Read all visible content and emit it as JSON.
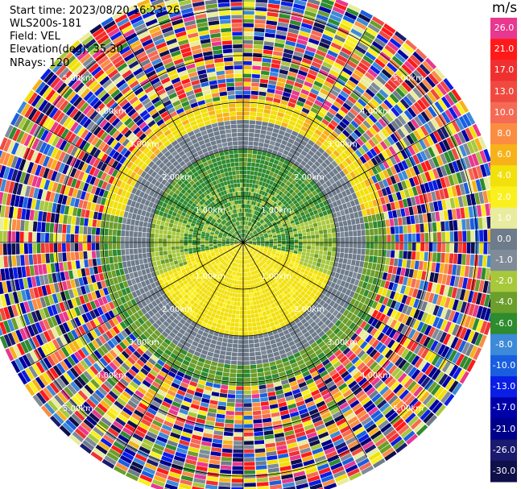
{
  "info": {
    "start_time": "Start time: 2023/08/20 16:23:26",
    "instrument": "WLS200s-181",
    "field": "Field: VEL",
    "elevation": "Elevation(deg): 35.30",
    "nrays": "NRays: 120"
  },
  "colorbar": {
    "unit": "m/s",
    "levels": [
      {
        "label": "26.0",
        "color": "#e8388f"
      },
      {
        "label": "21.0",
        "color": "#ff1a1a"
      },
      {
        "label": "17.0",
        "color": "#f03030"
      },
      {
        "label": "13.0",
        "color": "#f04a40"
      },
      {
        "label": "10.0",
        "color": "#f56a55"
      },
      {
        "label": "8.0",
        "color": "#fb8d42"
      },
      {
        "label": "6.0",
        "color": "#f7b21a"
      },
      {
        "label": "4.0",
        "color": "#f2e00a"
      },
      {
        "label": "2.0",
        "color": "#faf01e"
      },
      {
        "label": "1.0",
        "color": "#e8ec9e"
      },
      {
        "label": "0.0",
        "color": "#6e7b8a"
      },
      {
        "label": "-1.0",
        "color": "#7f8c97"
      },
      {
        "label": "-2.0",
        "color": "#a8c83c"
      },
      {
        "label": "-4.0",
        "color": "#6b9e2a"
      },
      {
        "label": "-6.0",
        "color": "#2e8b2e"
      },
      {
        "label": "-8.0",
        "color": "#3c8ad8"
      },
      {
        "label": "-10.0",
        "color": "#1a5ee0"
      },
      {
        "label": "-13.0",
        "color": "#0a1ee6"
      },
      {
        "label": "-17.0",
        "color": "#0000a8"
      },
      {
        "label": "-21.0",
        "color": "#00008a"
      },
      {
        "label": "-26.0",
        "color": "#1a1a6e"
      },
      {
        "label": "-30.0",
        "color": "#0f0f4a"
      }
    ]
  },
  "chart_data": {
    "type": "heatmap",
    "projection": "polar PPI",
    "nrays": 120,
    "range_rings_km": [
      1,
      2,
      3,
      4,
      5
    ],
    "ring_labels": [
      "1.00km",
      "2.00km",
      "3.00km",
      "4.00km",
      "5.00km"
    ],
    "field": "VEL",
    "units": "m/s",
    "description_of_pattern": [
      {
        "range_km": [
          0,
          1.2
        ],
        "dominant": "-4.0 to -6.0 (green) in north, 2.0 to 4.0 (yellow) in south"
      },
      {
        "range_km": [
          1.2,
          2.0
        ],
        "dominant": "-2.0 (light green) west, -6.0 (green) north, 4.0 (yellow) south"
      },
      {
        "range_km": [
          2.0,
          2.6
        ],
        "dominant": "0.0 (grey) ring"
      },
      {
        "range_km": [
          2.6,
          3.0
        ],
        "dominant": "4.0 to 6.0 (yellow/orange) north, -4.0 (green) south"
      },
      {
        "range_km": [
          3.0,
          5.5
        ],
        "dominant": "noise, all colors"
      }
    ]
  }
}
